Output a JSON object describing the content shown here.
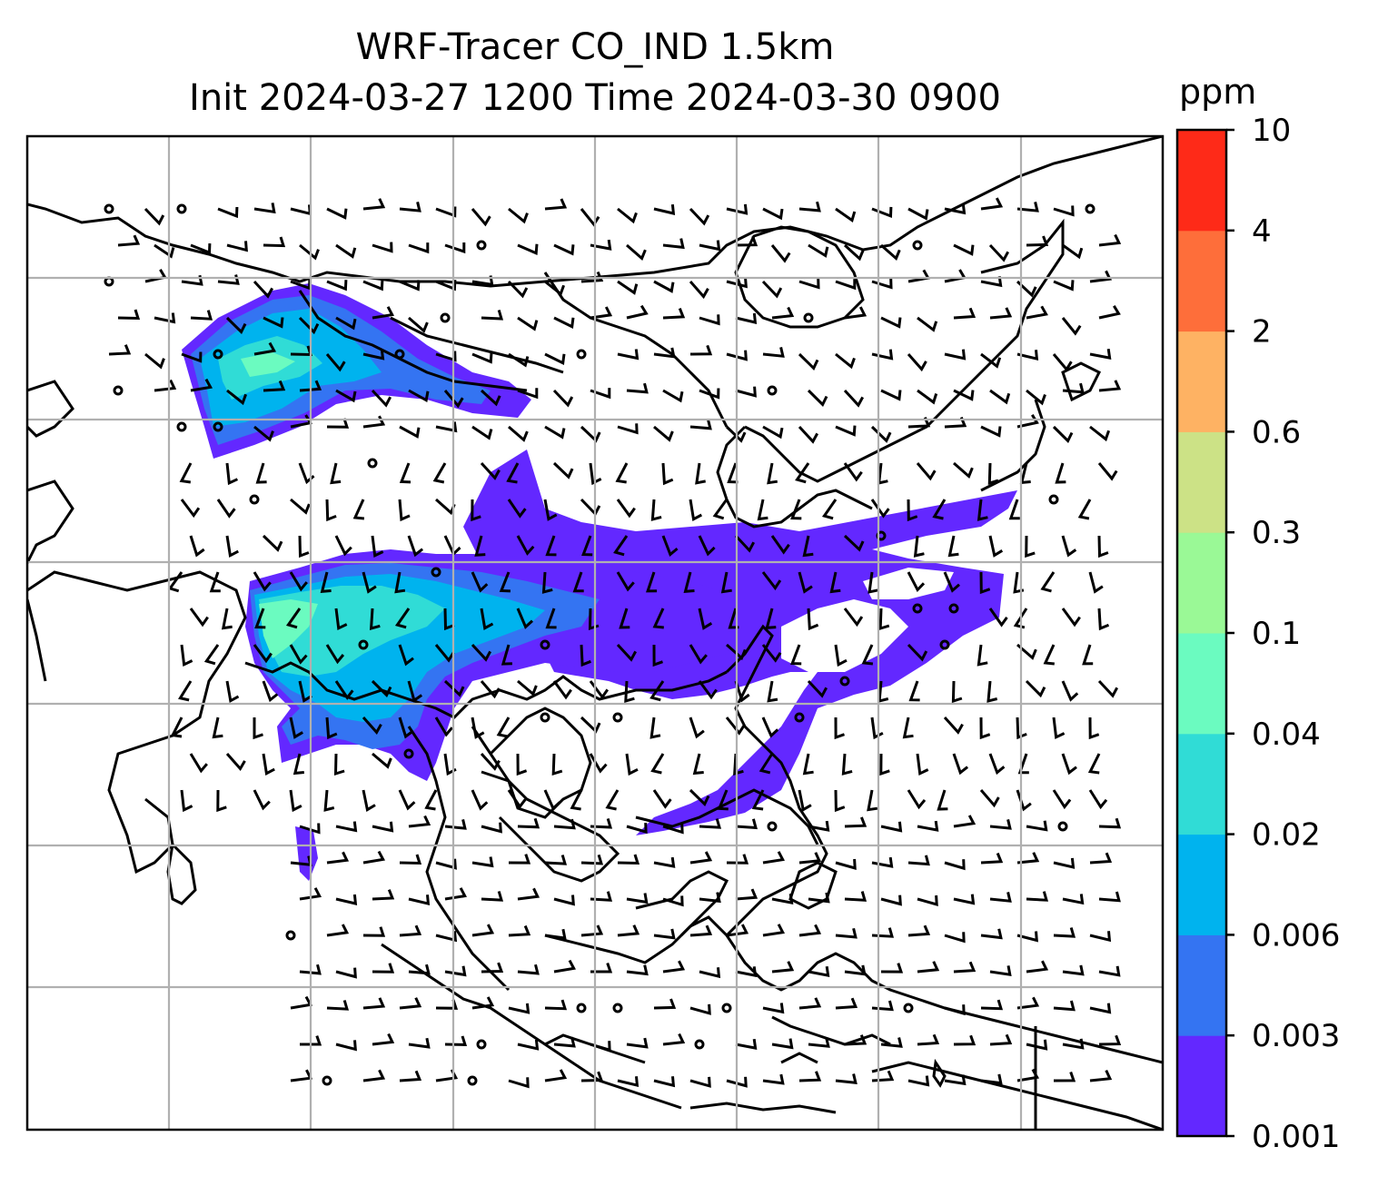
{
  "figure": {
    "title_line1": "WRF-Tracer CO_IND 1.5km",
    "title_line2": "Init 2024-03-27 1200 Time 2024-03-30 0900"
  },
  "colorbar": {
    "unit": "ppm",
    "levels": [
      "0.001",
      "0.003",
      "0.006",
      "0.02",
      "0.04",
      "0.1",
      "0.3",
      "0.6",
      "2",
      "4",
      "10"
    ],
    "colors": [
      "#6328FF",
      "#3474F2",
      "#00B3EE",
      "#30DCD6",
      "#6BFBC0",
      "#9AF996",
      "#CCE286",
      "#FEB263",
      "#FE6E3A",
      "#FE2A18"
    ]
  },
  "map": {
    "gridlines": true,
    "barbs": "wind barbs"
  }
}
